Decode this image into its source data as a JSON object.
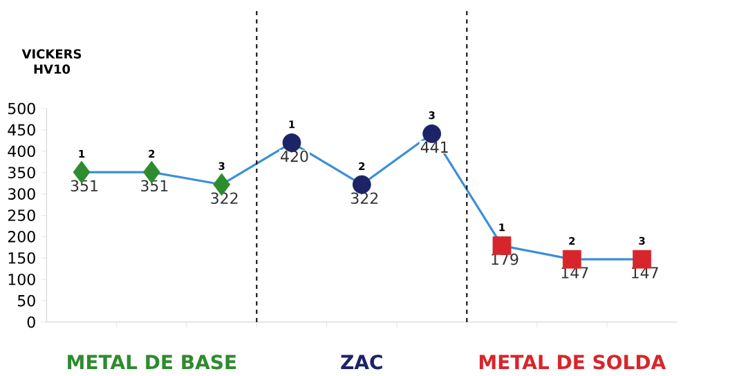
{
  "chart_data": {
    "type": "line",
    "ylabel": "VICKERS HV10",
    "categories": [
      null,
      null,
      null,
      null,
      null,
      null,
      null,
      null,
      null
    ],
    "series": [
      {
        "color": "#3a8fd6",
        "marker": "none",
        "values": [
          351,
          351,
          322,
          420,
          322,
          441,
          179,
          147,
          147
        ]
      },
      {
        "type": "scatter",
        "color": "#2e8b2e",
        "marker": "diamond",
        "values": [
          351,
          351,
          322,
          null,
          null,
          null,
          null,
          null,
          null
        ],
        "value_labels": [
          "351",
          "351",
          "322",
          null,
          null,
          null,
          null,
          null,
          null
        ]
      },
      {
        "type": "scatter",
        "color": "#1c2366",
        "marker": "circle",
        "values": [
          null,
          null,
          null,
          420,
          322,
          441,
          null,
          null,
          null
        ],
        "value_labels": [
          null,
          null,
          null,
          "420",
          "322",
          "441",
          null,
          null,
          null
        ]
      },
      {
        "type": "scatter",
        "color": "#d7262b",
        "marker": "square",
        "values": [
          null,
          null,
          null,
          null,
          null,
          null,
          179,
          147,
          147
        ],
        "value_labels": [
          null,
          null,
          null,
          null,
          null,
          null,
          "179",
          "147",
          "147"
        ]
      }
    ],
    "ylim": [
      0,
      500
    ],
    "yticks": [
      0,
      50,
      100,
      150,
      200,
      250,
      300,
      350,
      400,
      450,
      500
    ],
    "grid": false,
    "annotations": [
      {
        "text": "1",
        "y": 351
      },
      {
        "text": "2",
        "y": 351
      },
      {
        "text": "3",
        "y": 322
      },
      {
        "text": "1",
        "y": 420
      },
      {
        "text": "2",
        "y": 322
      },
      {
        "text": "3",
        "y": 441
      },
      {
        "text": "1",
        "y": 179
      },
      {
        "text": "2",
        "y": 147
      },
      {
        "text": "3",
        "y": 147
      },
      "METAL DE BASE",
      "ZAC",
      "METAL DE SOLDA"
    ]
  }
}
